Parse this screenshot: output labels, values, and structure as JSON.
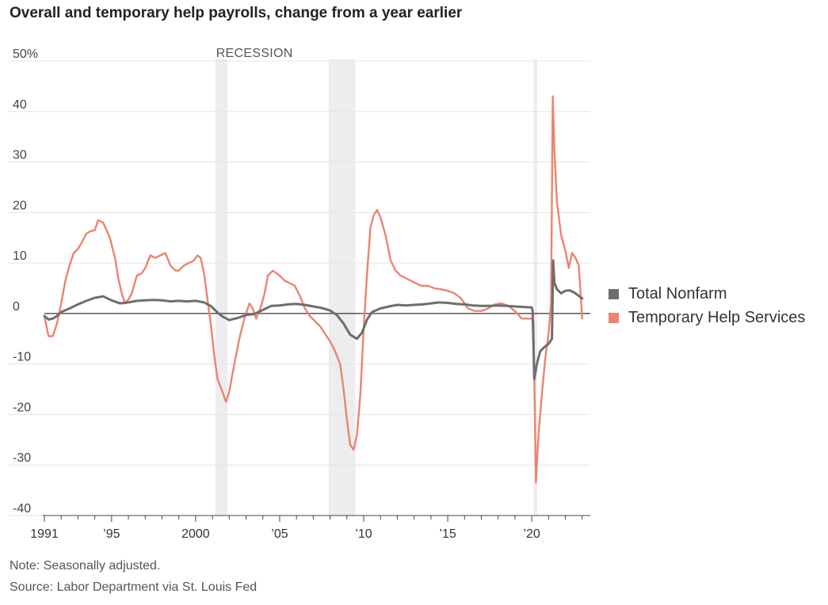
{
  "chart_data": {
    "type": "line",
    "title": "Overall and temporary help payrolls, change from a year earlier",
    "ylim": [
      -40,
      50
    ],
    "xlim": [
      1991,
      2023.2
    ],
    "y_ticks": [
      {
        "value": 50,
        "label": "50%"
      },
      {
        "value": 40,
        "label": "40"
      },
      {
        "value": 30,
        "label": "30"
      },
      {
        "value": 20,
        "label": "20"
      },
      {
        "value": 10,
        "label": "10"
      },
      {
        "value": 0,
        "label": "0"
      },
      {
        "value": -10,
        "label": "-10"
      },
      {
        "value": -20,
        "label": "-20"
      },
      {
        "value": -30,
        "label": "-30"
      },
      {
        "value": -40,
        "label": "-40"
      }
    ],
    "x_ticks": [
      {
        "value": 1991,
        "label": "1991"
      },
      {
        "value": 1995,
        "label": "’95"
      },
      {
        "value": 2000,
        "label": "2000"
      },
      {
        "value": 2005,
        "label": "’05"
      },
      {
        "value": 2010,
        "label": "’10"
      },
      {
        "value": 2015,
        "label": "’15"
      },
      {
        "value": 2020,
        "label": "’20"
      }
    ],
    "recession_label": "RECESSION",
    "recessions": [
      [
        2001.17,
        2001.9
      ],
      [
        2007.92,
        2009.5
      ],
      [
        2020.12,
        2020.32
      ]
    ],
    "grid": true,
    "series": [
      {
        "name": "Total Nonfarm",
        "color": "#6e6e6e",
        "x": [
          1991.0,
          1991.25,
          1991.5,
          1991.75,
          1992.0,
          1992.5,
          1993.0,
          1993.5,
          1994.0,
          1994.5,
          1995.0,
          1995.5,
          1996.0,
          1996.5,
          1997.0,
          1997.5,
          1998.0,
          1998.5,
          1999.0,
          1999.5,
          2000.0,
          2000.5,
          2000.9,
          2001.3,
          2001.6,
          2002.0,
          2002.5,
          2003.0,
          2003.5,
          2004.0,
          2004.5,
          2005.0,
          2005.5,
          2006.0,
          2006.5,
          2007.0,
          2007.5,
          2008.0,
          2008.4,
          2008.8,
          2009.2,
          2009.6,
          2009.9,
          2010.2,
          2010.5,
          2011.0,
          2011.5,
          2012.0,
          2012.5,
          2013.0,
          2013.5,
          2014.0,
          2014.5,
          2015.0,
          2015.5,
          2016.0,
          2016.5,
          2017.0,
          2017.5,
          2018.0,
          2018.5,
          2019.0,
          2019.5,
          2020.0,
          2020.05,
          2020.15,
          2020.3,
          2020.5,
          2020.8,
          2021.0,
          2021.2,
          2021.27,
          2021.35,
          2021.5,
          2021.75,
          2022.0,
          2022.25,
          2022.5,
          2022.75,
          2023.0
        ],
        "values": [
          -0.5,
          -1.2,
          -1.0,
          -0.5,
          0.3,
          1.0,
          1.8,
          2.5,
          3.1,
          3.4,
          2.6,
          2.0,
          2.2,
          2.5,
          2.6,
          2.7,
          2.6,
          2.4,
          2.5,
          2.4,
          2.5,
          2.2,
          1.5,
          0.2,
          -0.6,
          -1.3,
          -0.9,
          -0.3,
          -0.1,
          0.7,
          1.5,
          1.6,
          1.8,
          1.9,
          1.7,
          1.4,
          1.1,
          0.6,
          -0.3,
          -2.0,
          -4.2,
          -5.0,
          -3.8,
          -1.2,
          0.3,
          1.0,
          1.4,
          1.7,
          1.6,
          1.7,
          1.8,
          2.0,
          2.2,
          2.1,
          1.9,
          1.8,
          1.6,
          1.5,
          1.5,
          1.6,
          1.5,
          1.4,
          1.3,
          1.2,
          0.5,
          -13.0,
          -10.0,
          -7.5,
          -6.5,
          -6.0,
          -5.0,
          10.5,
          6.0,
          4.8,
          4.0,
          4.5,
          4.6,
          4.2,
          3.6,
          3.0
        ]
      },
      {
        "name": "Temporary Help Services",
        "color": "#ea8470",
        "x": [
          1991.0,
          1991.25,
          1991.5,
          1991.75,
          1992.0,
          1992.25,
          1992.5,
          1992.75,
          1993.0,
          1993.25,
          1993.5,
          1993.75,
          1994.0,
          1994.2,
          1994.5,
          1994.7,
          1994.9,
          1995.2,
          1995.4,
          1995.6,
          1995.8,
          1996.0,
          1996.2,
          1996.5,
          1996.8,
          1997.0,
          1997.3,
          1997.6,
          1997.9,
          1998.2,
          1998.5,
          1998.8,
          1999.0,
          1999.3,
          1999.6,
          1999.9,
          2000.1,
          2000.3,
          2000.5,
          2000.7,
          2000.9,
          2001.1,
          2001.3,
          2001.6,
          2001.8,
          2002.0,
          2002.3,
          2002.6,
          2002.9,
          2003.2,
          2003.4,
          2003.6,
          2003.9,
          2004.1,
          2004.3,
          2004.6,
          2004.8,
          2005.0,
          2005.3,
          2005.6,
          2005.9,
          2006.2,
          2006.5,
          2006.8,
          2007.1,
          2007.4,
          2007.7,
          2008.0,
          2008.3,
          2008.6,
          2008.8,
          2009.0,
          2009.2,
          2009.4,
          2009.6,
          2009.8,
          2010.0,
          2010.2,
          2010.4,
          2010.6,
          2010.8,
          2011.0,
          2011.3,
          2011.6,
          2011.9,
          2012.2,
          2012.5,
          2012.8,
          2013.1,
          2013.4,
          2013.8,
          2014.2,
          2014.6,
          2015.0,
          2015.4,
          2015.8,
          2016.2,
          2016.6,
          2017.0,
          2017.4,
          2017.8,
          2018.2,
          2018.6,
          2019.0,
          2019.4,
          2019.8,
          2020.0,
          2020.1,
          2020.25,
          2020.4,
          2020.6,
          2020.8,
          2021.0,
          2021.15,
          2021.25,
          2021.35,
          2021.5,
          2021.75,
          2022.0,
          2022.2,
          2022.4,
          2022.6,
          2022.8,
          2023.0
        ],
        "values": [
          -0.5,
          -4.5,
          -4.5,
          -2.0,
          2.0,
          6.5,
          9.5,
          12.0,
          12.8,
          14.2,
          15.8,
          16.3,
          16.5,
          18.5,
          18.0,
          16.5,
          15.0,
          11.0,
          7.0,
          4.0,
          2.0,
          2.8,
          4.0,
          7.5,
          8.0,
          9.0,
          11.5,
          11.0,
          11.5,
          12.0,
          9.5,
          8.5,
          8.5,
          9.5,
          10.0,
          10.5,
          11.5,
          11.0,
          8.0,
          3.0,
          -2.0,
          -8.0,
          -13.0,
          -15.5,
          -17.5,
          -15.5,
          -10.0,
          -5.0,
          -1.0,
          2.0,
          1.0,
          -1.0,
          1.5,
          4.0,
          7.5,
          8.5,
          8.0,
          7.5,
          6.5,
          6.0,
          5.5,
          3.5,
          1.0,
          -0.5,
          -1.5,
          -2.5,
          -4.0,
          -5.5,
          -7.5,
          -10.0,
          -15.0,
          -21.0,
          -26.0,
          -27.0,
          -24.0,
          -16.0,
          -3.0,
          8.0,
          17.0,
          19.5,
          20.5,
          19.0,
          15.5,
          10.5,
          8.5,
          7.5,
          7.0,
          6.5,
          6.0,
          5.5,
          5.5,
          5.0,
          4.8,
          4.5,
          4.0,
          3.0,
          1.0,
          0.5,
          0.5,
          1.0,
          1.8,
          2.0,
          1.5,
          0.5,
          -1.0,
          -1.0,
          -1.0,
          -1.5,
          -33.5,
          -24.0,
          -16.0,
          -9.0,
          -4.0,
          2.0,
          43.0,
          32.0,
          22.0,
          15.5,
          12.5,
          9.0,
          12.0,
          11.0,
          9.5,
          -1.0
        ]
      }
    ]
  },
  "legend": {
    "items": [
      {
        "label": "Total Nonfarm",
        "color": "#6e6e6e"
      },
      {
        "label": "Temporary Help Services",
        "color": "#ea8470"
      }
    ]
  },
  "footer": {
    "note": "Note: Seasonally adjusted.",
    "source": "Source: Labor Department via St. Louis Fed"
  }
}
